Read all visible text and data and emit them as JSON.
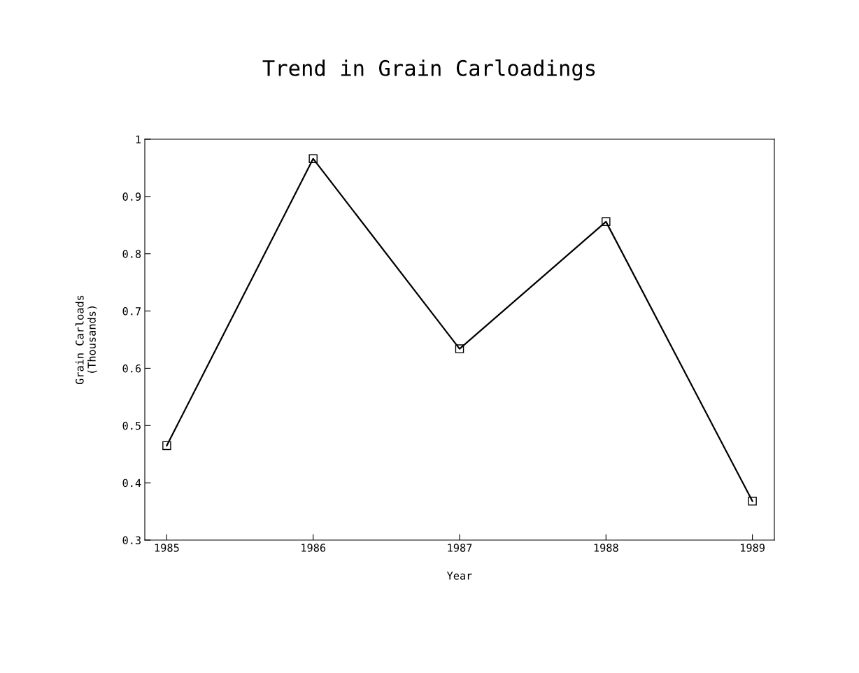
{
  "chart_data": {
    "type": "line",
    "title": "Trend in Grain Carloadings",
    "xlabel": "Year",
    "ylabel": "Grain Carloads\n(Thousands)",
    "x": [
      1985,
      1986,
      1987,
      1988,
      1989
    ],
    "series": [
      {
        "color": "#000000",
        "values": [
          0.465,
          0.966,
          0.634,
          0.856,
          0.368
        ]
      }
    ],
    "xlim": [
      1984.85,
      1989.15
    ],
    "xticks": [
      1985,
      1986,
      1987,
      1988,
      1989
    ],
    "ylim": [
      0.3,
      1
    ],
    "yticks": [
      0.3,
      0.4,
      0.5,
      0.6,
      0.7,
      0.8,
      0.9,
      1
    ],
    "marker": "square",
    "line_style": "solid",
    "grid": false,
    "legend": false
  }
}
